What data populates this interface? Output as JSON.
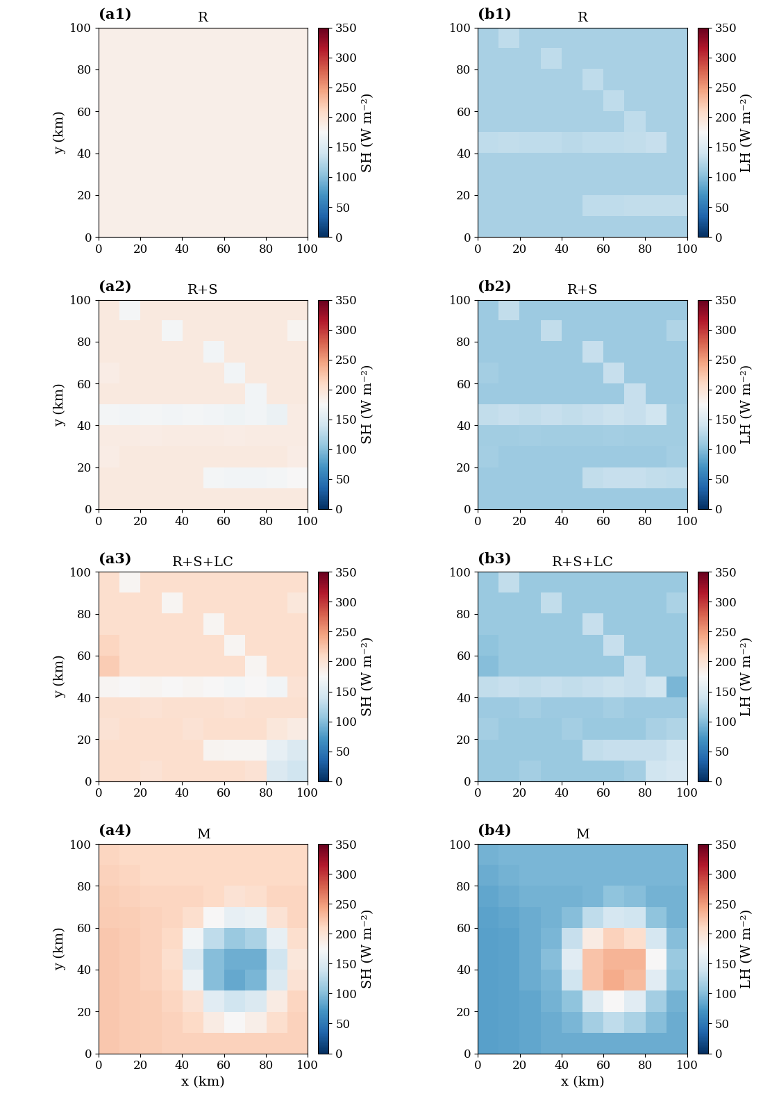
{
  "chart_data": [
    {
      "type": "heatmap",
      "panel_label": "(a1)",
      "title": "R",
      "ylabel": "y (km)",
      "xlim": [
        0,
        100
      ],
      "ylim": [
        0,
        100
      ],
      "xticks": [
        0,
        20,
        40,
        60,
        80,
        100
      ],
      "yticks": [
        0,
        20,
        40,
        60,
        80,
        100
      ],
      "colorbar": {
        "label": "SH (W m⁻²)",
        "range": [
          0,
          350
        ],
        "ticks": [
          0,
          50,
          100,
          150,
          200,
          250,
          300,
          350
        ]
      },
      "cells": [
        [
          185,
          185,
          185,
          185,
          185,
          185,
          185,
          185,
          185,
          185
        ],
        [
          185,
          185,
          185,
          185,
          185,
          185,
          185,
          185,
          185,
          185
        ],
        [
          185,
          185,
          185,
          185,
          185,
          185,
          185,
          185,
          185,
          185
        ],
        [
          185,
          185,
          185,
          185,
          185,
          185,
          185,
          185,
          185,
          185
        ],
        [
          185,
          185,
          185,
          185,
          185,
          185,
          185,
          185,
          185,
          185
        ],
        [
          185,
          185,
          185,
          185,
          185,
          185,
          185,
          185,
          185,
          185
        ],
        [
          185,
          185,
          185,
          185,
          185,
          185,
          185,
          185,
          185,
          185
        ],
        [
          185,
          185,
          185,
          185,
          185,
          185,
          185,
          185,
          185,
          185
        ],
        [
          185,
          185,
          185,
          185,
          185,
          185,
          185,
          185,
          185,
          185
        ],
        [
          185,
          185,
          185,
          185,
          185,
          185,
          185,
          185,
          185,
          185
        ]
      ]
    },
    {
      "type": "heatmap",
      "panel_label": "(b1)",
      "title": "R",
      "xlim": [
        0,
        100
      ],
      "ylim": [
        0,
        100
      ],
      "xticks": [
        0,
        20,
        40,
        60,
        80,
        100
      ],
      "yticks": [
        0,
        20,
        40,
        60,
        80,
        100
      ],
      "colorbar": {
        "label": "LH (W m⁻²)",
        "range": [
          0,
          350
        ],
        "ticks": [
          0,
          50,
          100,
          150,
          200,
          250,
          300,
          350
        ]
      },
      "cells": [
        [
          118,
          118,
          118,
          118,
          118,
          118,
          118,
          118,
          118,
          118
        ],
        [
          118,
          118,
          118,
          118,
          118,
          130,
          130,
          132,
          132,
          132
        ],
        [
          118,
          118,
          118,
          118,
          118,
          118,
          118,
          118,
          118,
          118
        ],
        [
          118,
          118,
          118,
          118,
          118,
          118,
          118,
          118,
          118,
          118
        ],
        [
          130,
          132,
          130,
          130,
          128,
          130,
          130,
          132,
          135,
          118
        ],
        [
          118,
          118,
          118,
          118,
          118,
          118,
          118,
          130,
          118,
          118
        ],
        [
          118,
          118,
          118,
          118,
          118,
          118,
          130,
          118,
          118,
          118
        ],
        [
          118,
          118,
          118,
          118,
          118,
          130,
          118,
          118,
          118,
          118
        ],
        [
          118,
          118,
          118,
          130,
          118,
          118,
          118,
          118,
          118,
          118
        ],
        [
          118,
          130,
          118,
          118,
          118,
          118,
          118,
          118,
          118,
          118
        ]
      ]
    },
    {
      "type": "heatmap",
      "panel_label": "(a2)",
      "title": "R+S",
      "ylabel": "y (km)",
      "xlim": [
        0,
        100
      ],
      "ylim": [
        0,
        100
      ],
      "xticks": [
        0,
        20,
        40,
        60,
        80,
        100
      ],
      "yticks": [
        0,
        20,
        40,
        60,
        80,
        100
      ],
      "colorbar": {
        "label": "SH (W m⁻²)",
        "range": [
          0,
          350
        ],
        "ticks": [
          0,
          50,
          100,
          150,
          200,
          250,
          300,
          350
        ]
      },
      "cells": [
        [
          192,
          192,
          192,
          192,
          192,
          192,
          192,
          192,
          192,
          192
        ],
        [
          192,
          192,
          192,
          192,
          192,
          172,
          170,
          170,
          172,
          175
        ],
        [
          188,
          192,
          192,
          192,
          192,
          192,
          192,
          192,
          192,
          188
        ],
        [
          190,
          190,
          188,
          190,
          190,
          190,
          188,
          190,
          190,
          190
        ],
        [
          172,
          170,
          172,
          170,
          172,
          170,
          168,
          170,
          165,
          190
        ],
        [
          192,
          192,
          192,
          192,
          192,
          192,
          192,
          170,
          192,
          192
        ],
        [
          188,
          192,
          192,
          192,
          192,
          192,
          170,
          192,
          192,
          192
        ],
        [
          192,
          192,
          192,
          192,
          192,
          170,
          192,
          192,
          192,
          192
        ],
        [
          192,
          192,
          192,
          172,
          192,
          192,
          192,
          192,
          192,
          180
        ],
        [
          192,
          172,
          192,
          192,
          192,
          192,
          192,
          192,
          192,
          192
        ]
      ]
    },
    {
      "type": "heatmap",
      "panel_label": "(b2)",
      "title": "R+S",
      "xlim": [
        0,
        100
      ],
      "ylim": [
        0,
        100
      ],
      "xticks": [
        0,
        20,
        40,
        60,
        80,
        100
      ],
      "yticks": [
        0,
        20,
        40,
        60,
        80,
        100
      ],
      "colorbar": {
        "label": "LH (W m⁻²)",
        "range": [
          0,
          350
        ],
        "ticks": [
          0,
          50,
          100,
          150,
          200,
          250,
          300,
          350
        ]
      },
      "cells": [
        [
          112,
          112,
          112,
          112,
          112,
          112,
          112,
          112,
          112,
          112
        ],
        [
          112,
          112,
          112,
          112,
          112,
          132,
          135,
          135,
          132,
          130
        ],
        [
          115,
          112,
          112,
          112,
          112,
          112,
          112,
          112,
          112,
          115
        ],
        [
          114,
          114,
          116,
          114,
          114,
          114,
          116,
          114,
          114,
          114
        ],
        [
          132,
          135,
          132,
          135,
          132,
          135,
          138,
          135,
          140,
          114
        ],
        [
          112,
          112,
          112,
          112,
          112,
          112,
          112,
          135,
          112,
          112
        ],
        [
          115,
          112,
          112,
          112,
          112,
          112,
          135,
          112,
          112,
          112
        ],
        [
          112,
          112,
          112,
          112,
          112,
          135,
          112,
          112,
          112,
          112
        ],
        [
          112,
          112,
          112,
          132,
          112,
          112,
          112,
          112,
          112,
          122
        ],
        [
          112,
          132,
          112,
          112,
          112,
          112,
          112,
          112,
          112,
          112
        ]
      ]
    },
    {
      "type": "heatmap",
      "panel_label": "(a3)",
      "title": "R+S+LC",
      "ylabel": "y (km)",
      "xlim": [
        0,
        100
      ],
      "ylim": [
        0,
        100
      ],
      "xticks": [
        0,
        20,
        40,
        60,
        80,
        100
      ],
      "yticks": [
        0,
        20,
        40,
        60,
        80,
        100
      ],
      "colorbar": {
        "label": "SH (W m⁻²)",
        "range": [
          0,
          350
        ],
        "ticks": [
          0,
          50,
          100,
          150,
          200,
          250,
          300,
          350
        ]
      },
      "cells": [
        [
          205,
          205,
          200,
          205,
          205,
          205,
          205,
          200,
          150,
          140
        ],
        [
          205,
          205,
          205,
          205,
          205,
          180,
          178,
          178,
          160,
          150
        ],
        [
          200,
          205,
          205,
          205,
          200,
          205,
          205,
          205,
          195,
          190
        ],
        [
          203,
          203,
          200,
          203,
          203,
          203,
          200,
          203,
          203,
          203
        ],
        [
          178,
          175,
          178,
          175,
          178,
          175,
          172,
          175,
          170,
          200
        ],
        [
          220,
          205,
          205,
          205,
          205,
          205,
          205,
          178,
          205,
          205
        ],
        [
          212,
          205,
          205,
          205,
          205,
          205,
          178,
          205,
          205,
          205
        ],
        [
          205,
          205,
          205,
          205,
          205,
          178,
          205,
          205,
          205,
          205
        ],
        [
          205,
          205,
          205,
          178,
          205,
          205,
          205,
          205,
          205,
          195
        ],
        [
          205,
          178,
          205,
          205,
          205,
          205,
          205,
          205,
          205,
          205
        ]
      ]
    },
    {
      "type": "heatmap",
      "panel_label": "(b3)",
      "title": "R+S+LC",
      "xlim": [
        0,
        100
      ],
      "ylim": [
        0,
        100
      ],
      "xticks": [
        0,
        20,
        40,
        60,
        80,
        100
      ],
      "yticks": [
        0,
        20,
        40,
        60,
        80,
        100
      ],
      "colorbar": {
        "label": "LH (W m⁻²)",
        "range": [
          0,
          350
        ],
        "ticks": [
          0,
          50,
          100,
          150,
          200,
          250,
          300,
          350
        ]
      },
      "cells": [
        [
          110,
          110,
          115,
          110,
          110,
          110,
          110,
          115,
          140,
          145
        ],
        [
          110,
          110,
          110,
          110,
          110,
          132,
          135,
          135,
          135,
          140
        ],
        [
          115,
          110,
          110,
          110,
          115,
          110,
          110,
          110,
          118,
          122
        ],
        [
          112,
          112,
          115,
          112,
          112,
          112,
          115,
          112,
          112,
          112
        ],
        [
          132,
          135,
          132,
          135,
          132,
          135,
          138,
          135,
          140,
          95
        ],
        [
          100,
          110,
          110,
          110,
          110,
          110,
          110,
          135,
          110,
          110
        ],
        [
          105,
          110,
          110,
          110,
          110,
          110,
          135,
          110,
          110,
          110
        ],
        [
          110,
          110,
          110,
          110,
          110,
          135,
          110,
          110,
          110,
          110
        ],
        [
          110,
          110,
          110,
          132,
          110,
          110,
          110,
          110,
          110,
          120
        ],
        [
          110,
          132,
          110,
          110,
          110,
          110,
          110,
          110,
          110,
          110
        ]
      ]
    },
    {
      "type": "heatmap",
      "panel_label": "(a4)",
      "title": "M",
      "xlabel": "x (km)",
      "ylabel": "y (km)",
      "xlim": [
        0,
        100
      ],
      "ylim": [
        0,
        100
      ],
      "xticks": [
        0,
        20,
        40,
        60,
        80,
        100
      ],
      "yticks": [
        0,
        20,
        40,
        60,
        80,
        100
      ],
      "colorbar": {
        "label": "SH (W m⁻²)",
        "range": [
          0,
          350
        ],
        "ticks": [
          0,
          50,
          100,
          150,
          200,
          250,
          300,
          350
        ]
      },
      "cells": [
        [
          222,
          220,
          218,
          215,
          215,
          215,
          215,
          215,
          215,
          215
        ],
        [
          222,
          220,
          218,
          215,
          210,
          190,
          175,
          185,
          205,
          215
        ],
        [
          222,
          220,
          218,
          212,
          200,
          155,
          140,
          150,
          190,
          212
        ],
        [
          222,
          220,
          215,
          210,
          165,
          100,
          85,
          95,
          150,
          200
        ],
        [
          222,
          220,
          215,
          205,
          150,
          100,
          90,
          90,
          140,
          195
        ],
        [
          222,
          220,
          215,
          210,
          170,
          130,
          110,
          120,
          160,
          205
        ],
        [
          220,
          218,
          215,
          212,
          205,
          175,
          160,
          165,
          200,
          212
        ],
        [
          218,
          215,
          212,
          212,
          212,
          210,
          200,
          205,
          212,
          212
        ],
        [
          215,
          212,
          210,
          210,
          210,
          210,
          210,
          210,
          210,
          210
        ],
        [
          212,
          210,
          210,
          210,
          210,
          210,
          210,
          210,
          210,
          210
        ]
      ]
    },
    {
      "type": "heatmap",
      "panel_label": "(b4)",
      "title": "M",
      "xlabel": "x (km)",
      "xlim": [
        0,
        100
      ],
      "ylim": [
        0,
        100
      ],
      "xticks": [
        0,
        20,
        40,
        60,
        80,
        100
      ],
      "yticks": [
        0,
        20,
        40,
        60,
        80,
        100
      ],
      "colorbar": {
        "label": "LH (W m⁻²)",
        "range": [
          0,
          350
        ],
        "ticks": [
          0,
          50,
          100,
          150,
          200,
          250,
          300,
          350
        ]
      },
      "cells": [
        [
          80,
          82,
          84,
          88,
          88,
          88,
          88,
          88,
          88,
          88
        ],
        [
          80,
          82,
          84,
          88,
          95,
          115,
          130,
          120,
          100,
          88
        ],
        [
          80,
          82,
          84,
          92,
          105,
          150,
          175,
          155,
          115,
          92
        ],
        [
          80,
          82,
          88,
          95,
          140,
          225,
          240,
          230,
          155,
          105
        ],
        [
          80,
          82,
          88,
          100,
          155,
          225,
          235,
          235,
          175,
          110
        ],
        [
          80,
          82,
          88,
          95,
          135,
          190,
          215,
          205,
          145,
          100
        ],
        [
          82,
          84,
          88,
          92,
          100,
          130,
          145,
          140,
          105,
          92
        ],
        [
          84,
          88,
          92,
          92,
          92,
          95,
          105,
          100,
          92,
          92
        ],
        [
          88,
          92,
          95,
          95,
          95,
          95,
          95,
          95,
          95,
          95
        ],
        [
          92,
          95,
          95,
          95,
          95,
          95,
          95,
          95,
          95,
          95
        ]
      ]
    }
  ]
}
